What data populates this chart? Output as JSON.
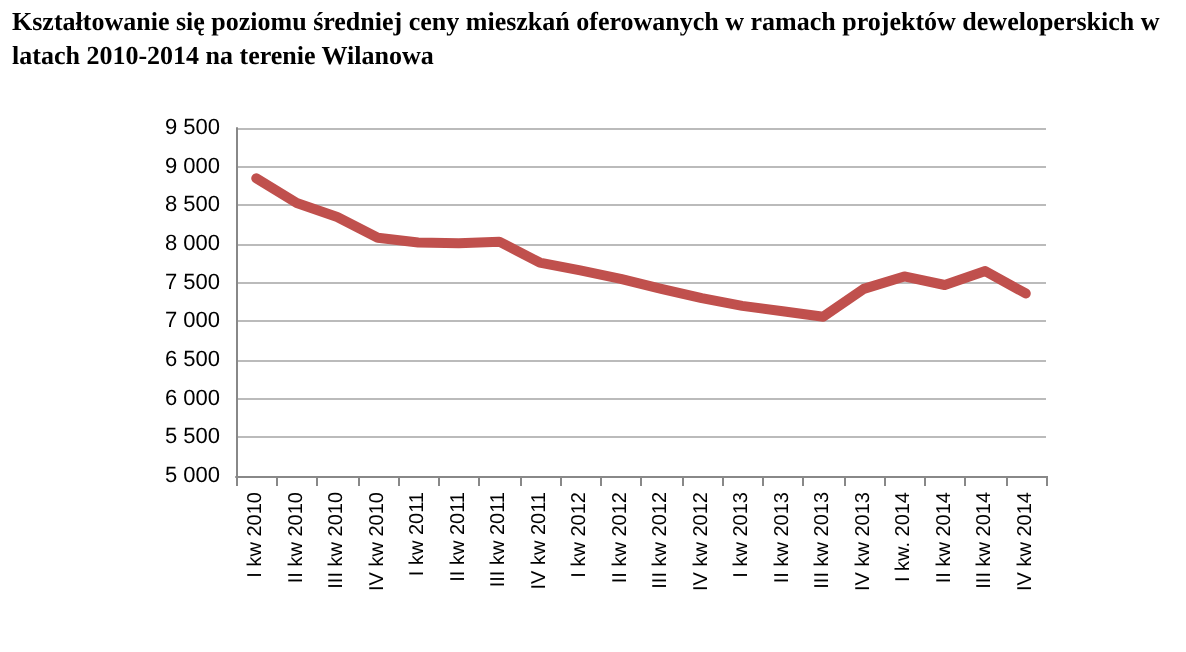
{
  "chart_data": {
    "type": "line",
    "title": "Kształtowanie się poziomu średniej ceny mieszkań oferowanych w ramach projektów deweloperskich w latach 2010-2014 na terenie Wilanowa",
    "categories": [
      "I kw 2010",
      "II kw 2010",
      "III kw 2010",
      "IV kw 2010",
      "I kw 2011",
      "II kw 2011",
      "III kw 2011",
      "IV kw 2011",
      "I kw 2012",
      "II kw 2012",
      "III kw 2012",
      "IV kw 2012",
      "I kw 2013",
      "II kw 2013",
      "III kw 2013",
      "IV kw 2013",
      "I kw. 2014",
      "II kw 2014",
      "III kw 2014",
      "IV kw 2014"
    ],
    "series": [
      {
        "color": "#c0504d",
        "values": [
          8850,
          8530,
          8350,
          8080,
          8020,
          8010,
          8030,
          7760,
          7660,
          7550,
          7420,
          7300,
          7200,
          7130,
          7060,
          7420,
          7580,
          7470,
          7650,
          7360
        ]
      }
    ],
    "ylim": [
      5000,
      9500
    ],
    "yticks": [
      {
        "value": 5000,
        "label": "5 000"
      },
      {
        "value": 5500,
        "label": "5 500"
      },
      {
        "value": 6000,
        "label": "6 000"
      },
      {
        "value": 6500,
        "label": "6 500"
      },
      {
        "value": 7000,
        "label": "7 000"
      },
      {
        "value": 7500,
        "label": "7 500"
      },
      {
        "value": 8000,
        "label": "8 000"
      },
      {
        "value": 8500,
        "label": "8 500"
      },
      {
        "value": 9000,
        "label": "9 000"
      },
      {
        "value": 9500,
        "label": "9 500"
      }
    ],
    "grid": "y",
    "marker": "none",
    "line_style": "solid"
  }
}
